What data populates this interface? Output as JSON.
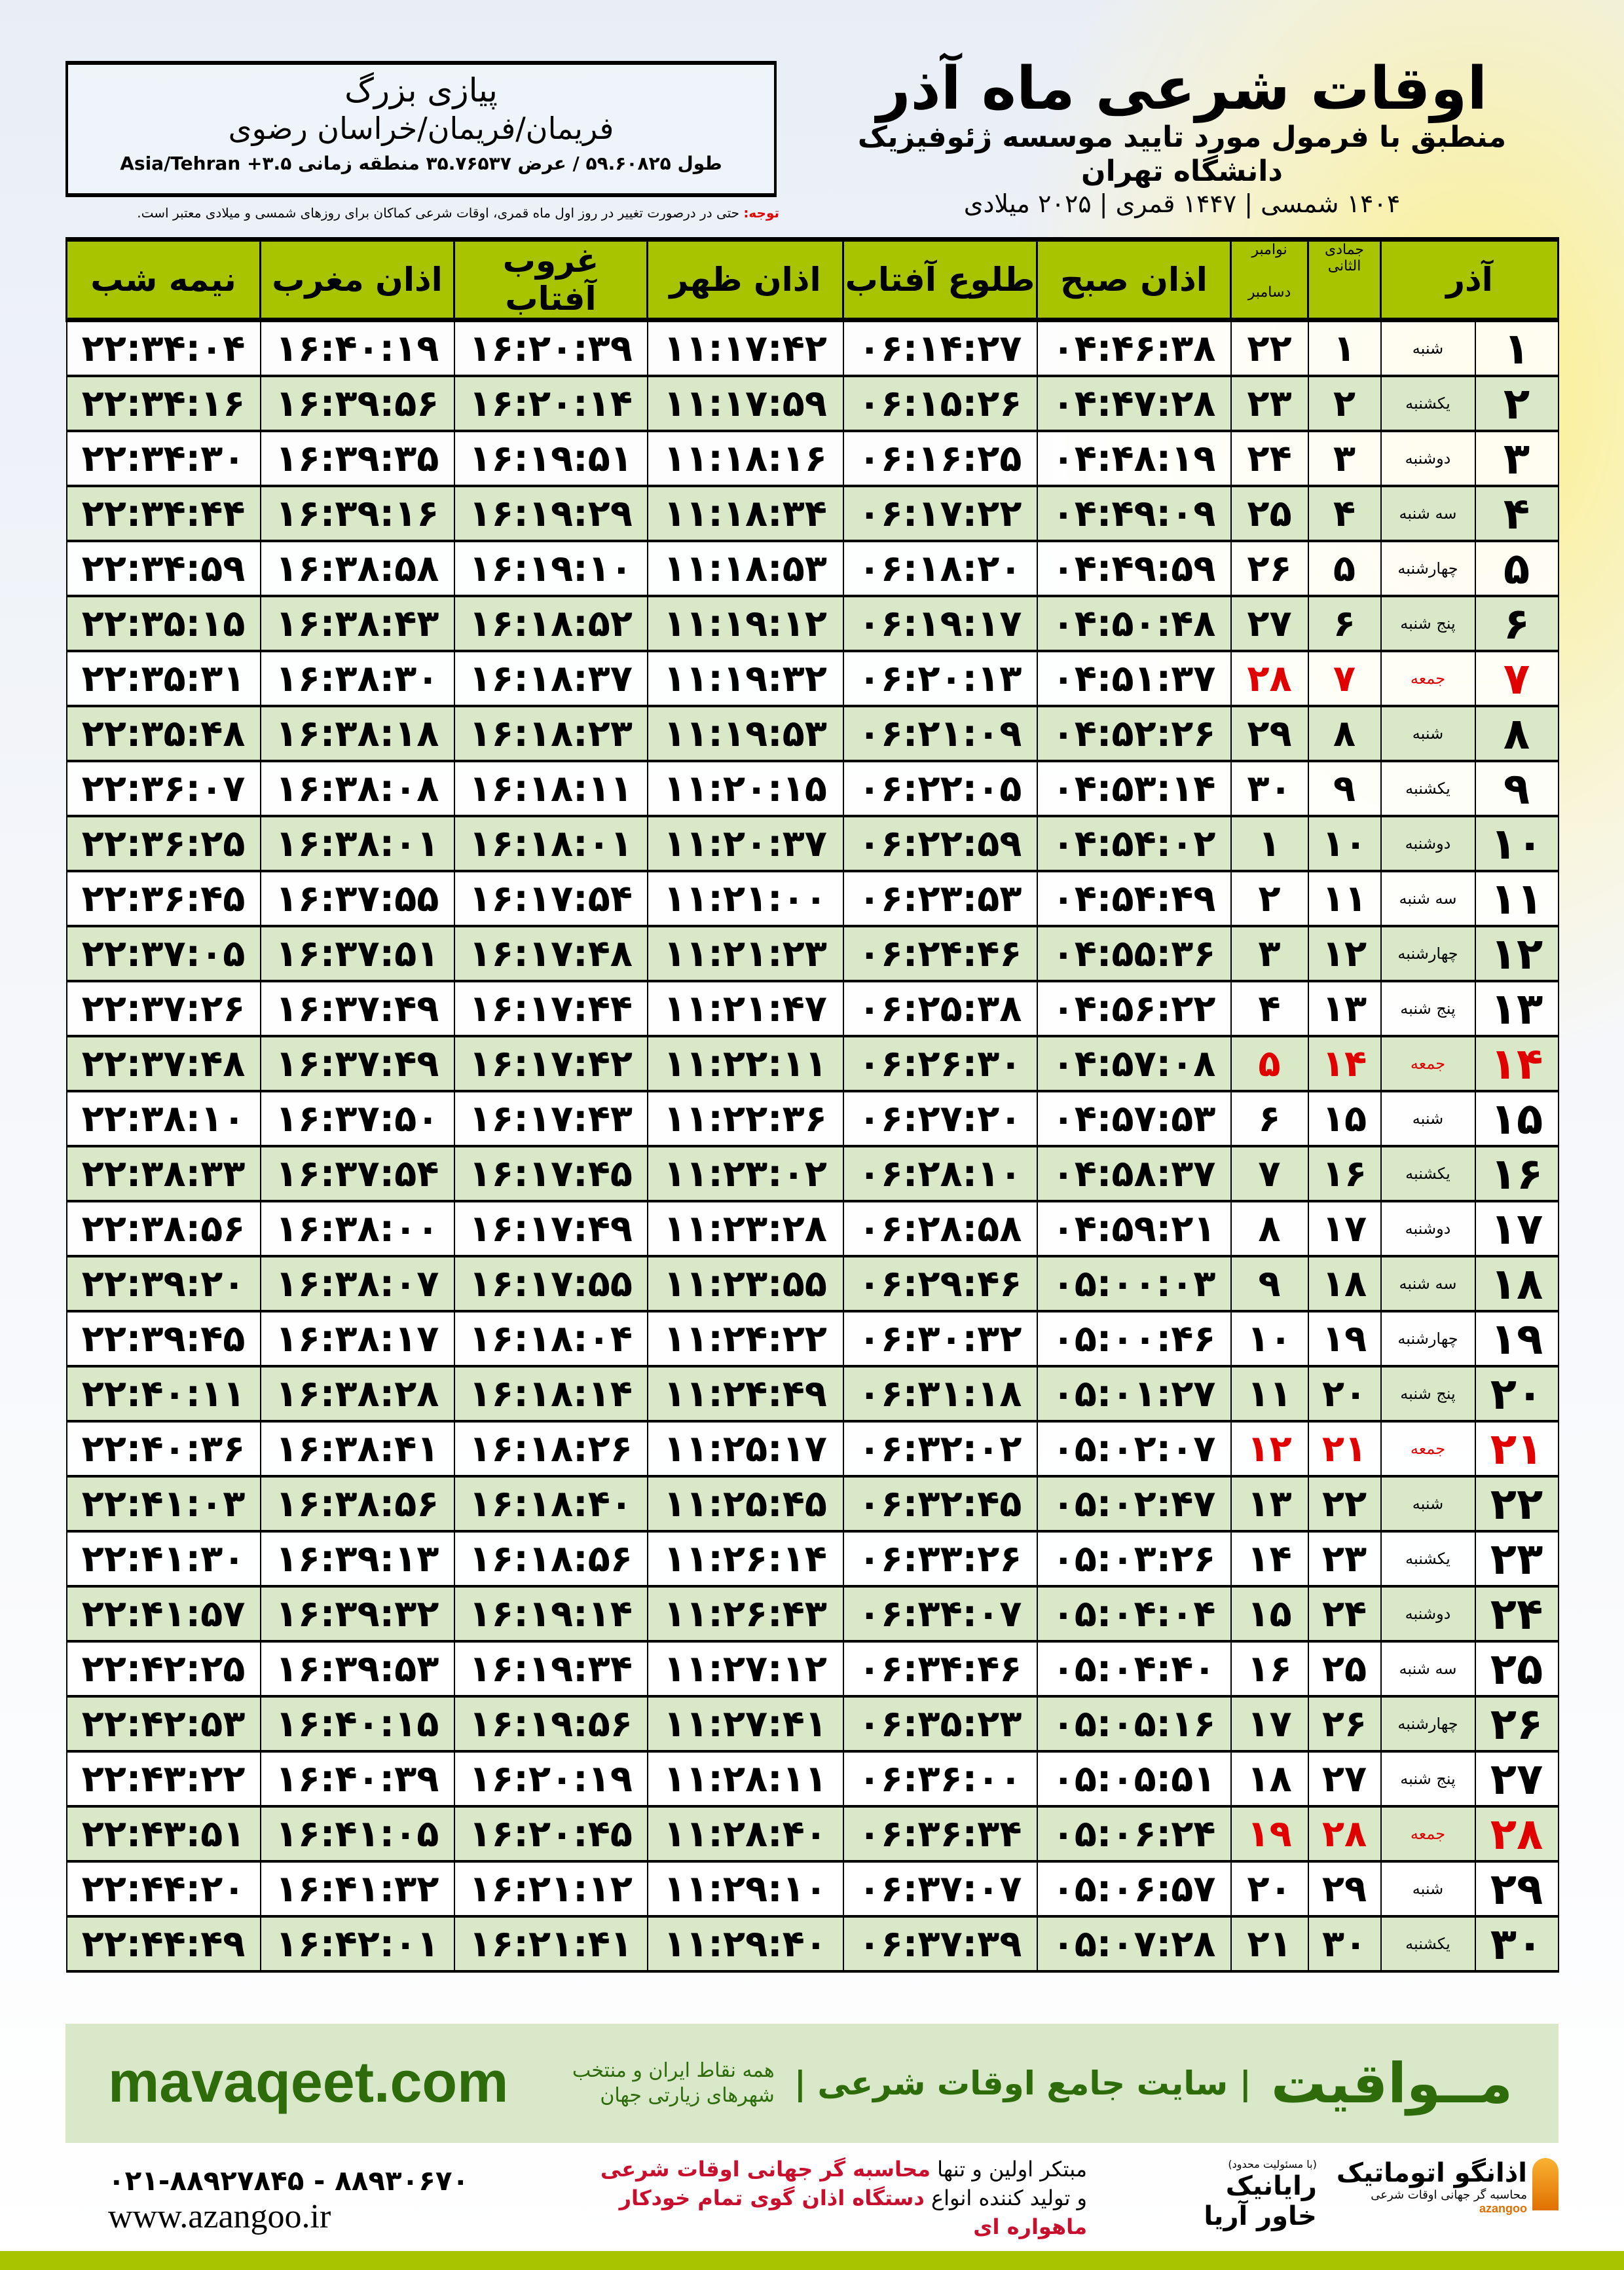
{
  "header": {
    "title": "اوقات شرعی ماه آذر",
    "subtitle": "منطبق با فرمول مورد تایید موسسه ژئوفیزیک دانشگاه تهران",
    "date_line": "۱۴۰۴ شمسی | ۱۴۴۷ قمری | ۲۰۲۵ میلادی"
  },
  "location": {
    "name": "پیازی بزرگ",
    "region": "فریمان/فریمان/خراسان رضوی",
    "coords": "طول ۵۹.۶۰۸۲۵ / عرض ۳۵.۷۶۵۳۷ منطقه زمانی ۳.۵+ Asia/Tehran"
  },
  "note": {
    "label": "توجه:",
    "text": " حتی در درصورت تغییر در روز اول ماه قمری، اوقات شرعی کماکان برای روزهای شمسی و میلادی معتبر است."
  },
  "columns": {
    "azar": "آذر",
    "hijri": "جمادی الثانی",
    "greg_top": "نوامبر",
    "greg_bottom": "دسامبر",
    "fajr": "اذان صبح",
    "sunrise": "طلوع آفتاب",
    "dhuhr": "اذان ظهر",
    "sunset": "غروب آفتاب",
    "maghrib": "اذان مغرب",
    "midnight": "نیمه شب"
  },
  "colors": {
    "header_green": "#a8c300",
    "row_alt": "#d9e8c6",
    "friday_red": "#e00000",
    "brand_green": "#2e6b0a"
  },
  "rows": [
    [
      "۱",
      "شنبه",
      "۱",
      "۲۲",
      "۰۴:۴۶:۳۸",
      "۰۶:۱۴:۲۷",
      "۱۱:۱۷:۴۲",
      "۱۶:۲۰:۳۹",
      "۱۶:۴۰:۱۹",
      "۲۲:۳۴:۰۴"
    ],
    [
      "۲",
      "یکشنبه",
      "۲",
      "۲۳",
      "۰۴:۴۷:۲۸",
      "۰۶:۱۵:۲۶",
      "۱۱:۱۷:۵۹",
      "۱۶:۲۰:۱۴",
      "۱۶:۳۹:۵۶",
      "۲۲:۳۴:۱۶"
    ],
    [
      "۳",
      "دوشنبه",
      "۳",
      "۲۴",
      "۰۴:۴۸:۱۹",
      "۰۶:۱۶:۲۵",
      "۱۱:۱۸:۱۶",
      "۱۶:۱۹:۵۱",
      "۱۶:۳۹:۳۵",
      "۲۲:۳۴:۳۰"
    ],
    [
      "۴",
      "سه شنبه",
      "۴",
      "۲۵",
      "۰۴:۴۹:۰۹",
      "۰۶:۱۷:۲۲",
      "۱۱:۱۸:۳۴",
      "۱۶:۱۹:۲۹",
      "۱۶:۳۹:۱۶",
      "۲۲:۳۴:۴۴"
    ],
    [
      "۵",
      "چهارشنبه",
      "۵",
      "۲۶",
      "۰۴:۴۹:۵۹",
      "۰۶:۱۸:۲۰",
      "۱۱:۱۸:۵۳",
      "۱۶:۱۹:۱۰",
      "۱۶:۳۸:۵۸",
      "۲۲:۳۴:۵۹"
    ],
    [
      "۶",
      "پنج شنبه",
      "۶",
      "۲۷",
      "۰۴:۵۰:۴۸",
      "۰۶:۱۹:۱۷",
      "۱۱:۱۹:۱۲",
      "۱۶:۱۸:۵۲",
      "۱۶:۳۸:۴۳",
      "۲۲:۳۵:۱۵"
    ],
    [
      "۷",
      "جمعه",
      "۷",
      "۲۸",
      "۰۴:۵۱:۳۷",
      "۰۶:۲۰:۱۳",
      "۱۱:۱۹:۳۲",
      "۱۶:۱۸:۳۷",
      "۱۶:۳۸:۳۰",
      "۲۲:۳۵:۳۱"
    ],
    [
      "۸",
      "شنبه",
      "۸",
      "۲۹",
      "۰۴:۵۲:۲۶",
      "۰۶:۲۱:۰۹",
      "۱۱:۱۹:۵۳",
      "۱۶:۱۸:۲۳",
      "۱۶:۳۸:۱۸",
      "۲۲:۳۵:۴۸"
    ],
    [
      "۹",
      "یکشنبه",
      "۹",
      "۳۰",
      "۰۴:۵۳:۱۴",
      "۰۶:۲۲:۰۵",
      "۱۱:۲۰:۱۵",
      "۱۶:۱۸:۱۱",
      "۱۶:۳۸:۰۸",
      "۲۲:۳۶:۰۷"
    ],
    [
      "۱۰",
      "دوشنبه",
      "۱۰",
      "۱",
      "۰۴:۵۴:۰۲",
      "۰۶:۲۲:۵۹",
      "۱۱:۲۰:۳۷",
      "۱۶:۱۸:۰۱",
      "۱۶:۳۸:۰۱",
      "۲۲:۳۶:۲۵"
    ],
    [
      "۱۱",
      "سه شنبه",
      "۱۱",
      "۲",
      "۰۴:۵۴:۴۹",
      "۰۶:۲۳:۵۳",
      "۱۱:۲۱:۰۰",
      "۱۶:۱۷:۵۴",
      "۱۶:۳۷:۵۵",
      "۲۲:۳۶:۴۵"
    ],
    [
      "۱۲",
      "چهارشنبه",
      "۱۲",
      "۳",
      "۰۴:۵۵:۳۶",
      "۰۶:۲۴:۴۶",
      "۱۱:۲۱:۲۳",
      "۱۶:۱۷:۴۸",
      "۱۶:۳۷:۵۱",
      "۲۲:۳۷:۰۵"
    ],
    [
      "۱۳",
      "پنج شنبه",
      "۱۳",
      "۴",
      "۰۴:۵۶:۲۲",
      "۰۶:۲۵:۳۸",
      "۱۱:۲۱:۴۷",
      "۱۶:۱۷:۴۴",
      "۱۶:۳۷:۴۹",
      "۲۲:۳۷:۲۶"
    ],
    [
      "۱۴",
      "جمعه",
      "۱۴",
      "۵",
      "۰۴:۵۷:۰۸",
      "۰۶:۲۶:۳۰",
      "۱۱:۲۲:۱۱",
      "۱۶:۱۷:۴۲",
      "۱۶:۳۷:۴۹",
      "۲۲:۳۷:۴۸"
    ],
    [
      "۱۵",
      "شنبه",
      "۱۵",
      "۶",
      "۰۴:۵۷:۵۳",
      "۰۶:۲۷:۲۰",
      "۱۱:۲۲:۳۶",
      "۱۶:۱۷:۴۳",
      "۱۶:۳۷:۵۰",
      "۲۲:۳۸:۱۰"
    ],
    [
      "۱۶",
      "یکشنبه",
      "۱۶",
      "۷",
      "۰۴:۵۸:۳۷",
      "۰۶:۲۸:۱۰",
      "۱۱:۲۳:۰۲",
      "۱۶:۱۷:۴۵",
      "۱۶:۳۷:۵۴",
      "۲۲:۳۸:۳۳"
    ],
    [
      "۱۷",
      "دوشنبه",
      "۱۷",
      "۸",
      "۰۴:۵۹:۲۱",
      "۰۶:۲۸:۵۸",
      "۱۱:۲۳:۲۸",
      "۱۶:۱۷:۴۹",
      "۱۶:۳۸:۰۰",
      "۲۲:۳۸:۵۶"
    ],
    [
      "۱۸",
      "سه شنبه",
      "۱۸",
      "۹",
      "۰۵:۰۰:۰۳",
      "۰۶:۲۹:۴۶",
      "۱۱:۲۳:۵۵",
      "۱۶:۱۷:۵۵",
      "۱۶:۳۸:۰۷",
      "۲۲:۳۹:۲۰"
    ],
    [
      "۱۹",
      "چهارشنبه",
      "۱۹",
      "۱۰",
      "۰۵:۰۰:۴۶",
      "۰۶:۳۰:۳۲",
      "۱۱:۲۴:۲۲",
      "۱۶:۱۸:۰۴",
      "۱۶:۳۸:۱۷",
      "۲۲:۳۹:۴۵"
    ],
    [
      "۲۰",
      "پنج شنبه",
      "۲۰",
      "۱۱",
      "۰۵:۰۱:۲۷",
      "۰۶:۳۱:۱۸",
      "۱۱:۲۴:۴۹",
      "۱۶:۱۸:۱۴",
      "۱۶:۳۸:۲۸",
      "۲۲:۴۰:۱۱"
    ],
    [
      "۲۱",
      "جمعه",
      "۲۱",
      "۱۲",
      "۰۵:۰۲:۰۷",
      "۰۶:۳۲:۰۲",
      "۱۱:۲۵:۱۷",
      "۱۶:۱۸:۲۶",
      "۱۶:۳۸:۴۱",
      "۲۲:۴۰:۳۶"
    ],
    [
      "۲۲",
      "شنبه",
      "۲۲",
      "۱۳",
      "۰۵:۰۲:۴۷",
      "۰۶:۳۲:۴۵",
      "۱۱:۲۵:۴۵",
      "۱۶:۱۸:۴۰",
      "۱۶:۳۸:۵۶",
      "۲۲:۴۱:۰۳"
    ],
    [
      "۲۳",
      "یکشنبه",
      "۲۳",
      "۱۴",
      "۰۵:۰۳:۲۶",
      "۰۶:۳۳:۲۶",
      "۱۱:۲۶:۱۴",
      "۱۶:۱۸:۵۶",
      "۱۶:۳۹:۱۳",
      "۲۲:۴۱:۳۰"
    ],
    [
      "۲۴",
      "دوشنبه",
      "۲۴",
      "۱۵",
      "۰۵:۰۴:۰۴",
      "۰۶:۳۴:۰۷",
      "۱۱:۲۶:۴۳",
      "۱۶:۱۹:۱۴",
      "۱۶:۳۹:۳۲",
      "۲۲:۴۱:۵۷"
    ],
    [
      "۲۵",
      "سه شنبه",
      "۲۵",
      "۱۶",
      "۰۵:۰۴:۴۰",
      "۰۶:۳۴:۴۶",
      "۱۱:۲۷:۱۲",
      "۱۶:۱۹:۳۴",
      "۱۶:۳۹:۵۳",
      "۲۲:۴۲:۲۵"
    ],
    [
      "۲۶",
      "چهارشنبه",
      "۲۶",
      "۱۷",
      "۰۵:۰۵:۱۶",
      "۰۶:۳۵:۲۳",
      "۱۱:۲۷:۴۱",
      "۱۶:۱۹:۵۶",
      "۱۶:۴۰:۱۵",
      "۲۲:۴۲:۵۳"
    ],
    [
      "۲۷",
      "پنج شنبه",
      "۲۷",
      "۱۸",
      "۰۵:۰۵:۵۱",
      "۰۶:۳۶:۰۰",
      "۱۱:۲۸:۱۱",
      "۱۶:۲۰:۱۹",
      "۱۶:۴۰:۳۹",
      "۲۲:۴۳:۲۲"
    ],
    [
      "۲۸",
      "جمعه",
      "۲۸",
      "۱۹",
      "۰۵:۰۶:۲۴",
      "۰۶:۳۶:۳۴",
      "۱۱:۲۸:۴۰",
      "۱۶:۲۰:۴۵",
      "۱۶:۴۱:۰۵",
      "۲۲:۴۳:۵۱"
    ],
    [
      "۲۹",
      "شنبه",
      "۲۹",
      "۲۰",
      "۰۵:۰۶:۵۷",
      "۰۶:۳۷:۰۷",
      "۱۱:۲۹:۱۰",
      "۱۶:۲۱:۱۲",
      "۱۶:۴۱:۳۲",
      "۲۲:۴۴:۲۰"
    ],
    [
      "۳۰",
      "یکشنبه",
      "۳۰",
      "۲۱",
      "۰۵:۰۷:۲۸",
      "۰۶:۳۷:۳۹",
      "۱۱:۲۹:۴۰",
      "۱۶:۲۱:۴۱",
      "۱۶:۴۲:۰۱",
      "۲۲:۴۴:۴۹"
    ]
  ],
  "banner": {
    "brand": "مــواقیت",
    "slogan": "| سایت جامع اوقات شرعی |",
    "slogan_sub": "همه نقاط ایران و منتخب شهرهای زیارتی جهان",
    "site": "mavaqeet.com"
  },
  "footer": {
    "phones": "۰۲۱-۸۸۹۲۷۸۴۵ - ۸۸۹۳۰۶۷۰",
    "website": "www.azangoo.ir",
    "promo_1a": "مبتکر اولین و تنها ",
    "promo_1b": "محاسبه گر جهانی اوقات شرعی",
    "promo_2a": "و تولید کننده انواع ",
    "promo_2b": "دستگاه اذان گوی تمام خودکار ماهواره ای",
    "rayanik_note": "(با مسئولیت محدود)",
    "rayanik": "رایانیک خاور آریا",
    "azangoo": "اذانگو اتوماتیک",
    "azangoo_sub": "محاسبه گر جهانی اوقات شرعی",
    "azangoo_en": "azangoo"
  }
}
